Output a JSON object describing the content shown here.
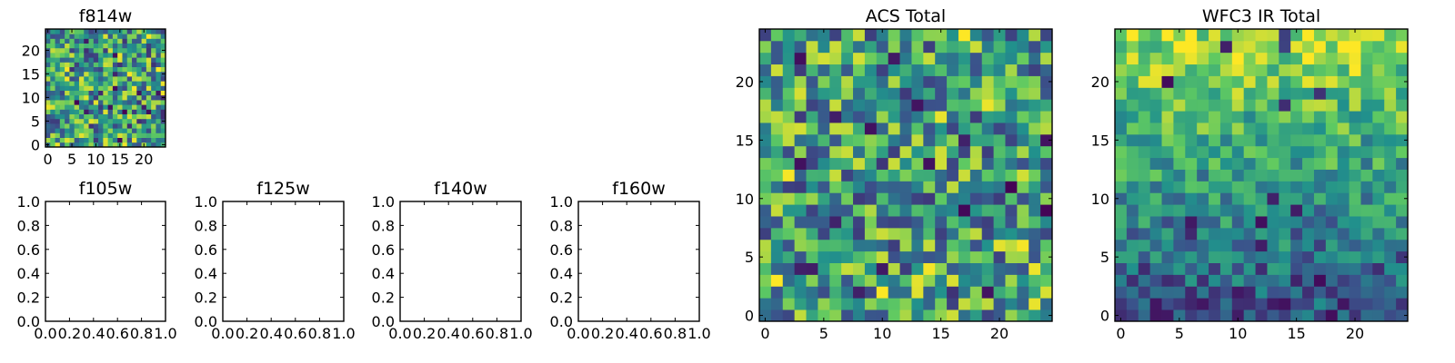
{
  "colormap": [
    "#440154",
    "#3b528b",
    "#21918c",
    "#5ec962",
    "#fde725"
  ],
  "chart_data": [
    {
      "type": "heatmap",
      "title": "f814w",
      "xlim": [
        -0.5,
        24.5
      ],
      "ylim": [
        -0.5,
        24.5
      ],
      "xticks": [
        0,
        5,
        10,
        15,
        20
      ],
      "xtick_labels": [
        "0",
        "5",
        "10",
        "15",
        "20"
      ],
      "yticks": [
        0,
        5,
        10,
        15,
        20
      ],
      "ytick_labels": [
        "0",
        "5",
        "10",
        "15",
        "20"
      ],
      "grid": false,
      "size": [
        25,
        25
      ],
      "values_description": "random-looking pixel intensities on a 25x25 grid (viridis colormap)",
      "seed": 3
    },
    {
      "type": "empty",
      "title": "f105w",
      "xlim": [
        0,
        1
      ],
      "ylim": [
        0,
        1
      ],
      "xtick_labels": [
        "0.0",
        "0.2",
        "0.4",
        "0.6",
        "0.8",
        "1.0"
      ],
      "ytick_labels": [
        "0.0",
        "0.2",
        "0.4",
        "0.6",
        "0.8",
        "1.0"
      ]
    },
    {
      "type": "empty",
      "title": "f125w",
      "xlim": [
        0,
        1
      ],
      "ylim": [
        0,
        1
      ],
      "xtick_labels": [
        "0.0",
        "0.2",
        "0.4",
        "0.6",
        "0.8",
        "1.0"
      ],
      "ytick_labels": [
        "0.0",
        "0.2",
        "0.4",
        "0.6",
        "0.8",
        "1.0"
      ]
    },
    {
      "type": "empty",
      "title": "f140w",
      "xlim": [
        0,
        1
      ],
      "ylim": [
        0,
        1
      ],
      "xtick_labels": [
        "0.0",
        "0.2",
        "0.4",
        "0.6",
        "0.8",
        "1.0"
      ],
      "ytick_labels": [
        "0.0",
        "0.2",
        "0.4",
        "0.6",
        "0.8",
        "1.0"
      ]
    },
    {
      "type": "empty",
      "title": "f160w",
      "xlim": [
        0,
        1
      ],
      "ylim": [
        0,
        1
      ],
      "xtick_labels": [
        "0.0",
        "0.2",
        "0.4",
        "0.6",
        "0.8",
        "1.0"
      ],
      "ytick_labels": [
        "0.0",
        "0.2",
        "0.4",
        "0.6",
        "0.8",
        "1.0"
      ]
    },
    {
      "type": "heatmap",
      "title": "ACS Total",
      "xlim": [
        -0.5,
        24.5
      ],
      "ylim": [
        -0.5,
        24.5
      ],
      "xticks": [
        0,
        5,
        10,
        15,
        20
      ],
      "xtick_labels": [
        "0",
        "5",
        "10",
        "15",
        "20"
      ],
      "yticks": [
        0,
        5,
        10,
        15,
        20
      ],
      "ytick_labels": [
        "0",
        "5",
        "10",
        "15",
        "20"
      ],
      "grid": false,
      "size": [
        25,
        25
      ],
      "values_description": "random-looking pixel intensities on a 25x25 grid (viridis colormap), mostly green-yellow",
      "seed": 7
    },
    {
      "type": "heatmap",
      "title": "WFC3 IR Total",
      "xlim": [
        -0.5,
        24.5
      ],
      "ylim": [
        -0.5,
        24.5
      ],
      "xticks": [
        0,
        5,
        10,
        15,
        20
      ],
      "xtick_labels": [
        "0",
        "5",
        "10",
        "15",
        "20"
      ],
      "yticks": [
        0,
        5,
        10,
        15,
        20
      ],
      "ytick_labels": [
        "0",
        "5",
        "10",
        "15",
        "20"
      ],
      "grid": false,
      "size": [
        25,
        25
      ],
      "values_description": "pixel intensities on a 25x25 grid increasing from bottom (blue) to top (yellow)",
      "gradient": "bottom-to-top",
      "seed": 11
    }
  ]
}
